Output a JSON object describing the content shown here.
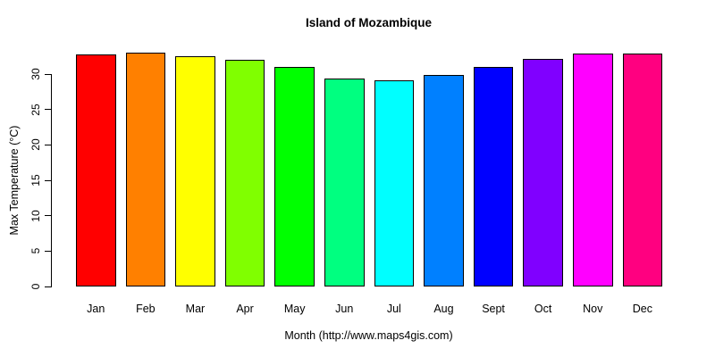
{
  "chart_data": {
    "type": "bar",
    "title": "Island of Mozambique",
    "xlabel": "Month (http://www.maps4gis.com)",
    "ylabel": "Max Temperature (°C)",
    "categories": [
      "Jan",
      "Feb",
      "Mar",
      "Apr",
      "May",
      "Jun",
      "Jul",
      "Aug",
      "Sept",
      "Oct",
      "Nov",
      "Dec"
    ],
    "values": [
      32.8,
      33.0,
      32.5,
      32.0,
      31.0,
      29.4,
      29.1,
      29.9,
      31.0,
      32.2,
      32.9,
      32.9
    ],
    "bar_colors": [
      "#FF0000",
      "#FF8000",
      "#FFFF00",
      "#80FF00",
      "#00FF00",
      "#00FF80",
      "#00FFFF",
      "#0080FF",
      "#0000FF",
      "#8000FF",
      "#FF00FF",
      "#FF0080"
    ],
    "yticks": [
      0,
      5,
      10,
      15,
      20,
      25,
      30
    ],
    "ylim": [
      0,
      33.5
    ],
    "grid": false,
    "legend": "none",
    "bar_border_color": "#000000",
    "background_color": "#FFFFFF",
    "text_color": "#000000"
  }
}
